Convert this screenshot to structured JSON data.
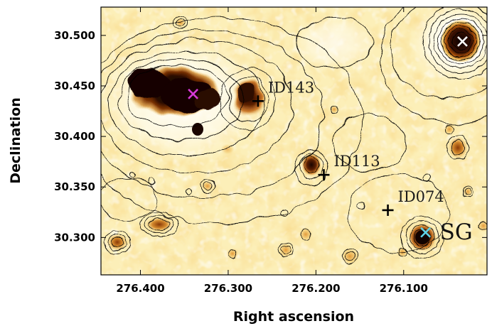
{
  "figure": {
    "xlabel": "Right ascension",
    "ylabel": "Declination",
    "x_ticks": [
      "276.400",
      "276.300",
      "276.200",
      "276.100"
    ],
    "y_ticks": [
      "30.500",
      "30.450",
      "30.400",
      "30.350",
      "30.300"
    ],
    "x_range": [
      276.445,
      276.005
    ],
    "y_range": [
      30.263,
      30.528
    ],
    "colormap": [
      "#ffffff",
      "#fdf3c4",
      "#f5d27a",
      "#e8a23c",
      "#c2650f",
      "#6e2704",
      "#120300"
    ],
    "contour_color": "#000000"
  },
  "sources": [
    {
      "id": "ID143",
      "ra": 276.266,
      "dec": 30.435,
      "marker": "plus",
      "color": "#000000"
    },
    {
      "id": "ID113",
      "ra": 276.191,
      "dec": 30.362,
      "marker": "plus",
      "color": "#000000"
    },
    {
      "id": "ID074",
      "ra": 276.118,
      "dec": 30.327,
      "marker": "plus",
      "color": "#000000"
    },
    {
      "id": "SG",
      "ra": 276.075,
      "dec": 30.305,
      "marker": "x",
      "color": "#5fd3e6"
    }
  ],
  "other_markers": [
    {
      "ra": 276.34,
      "dec": 30.442,
      "marker": "x",
      "color": "#d63ad6"
    },
    {
      "ra": 276.033,
      "dec": 30.494,
      "marker": "x",
      "color": "#ffffff"
    }
  ]
}
